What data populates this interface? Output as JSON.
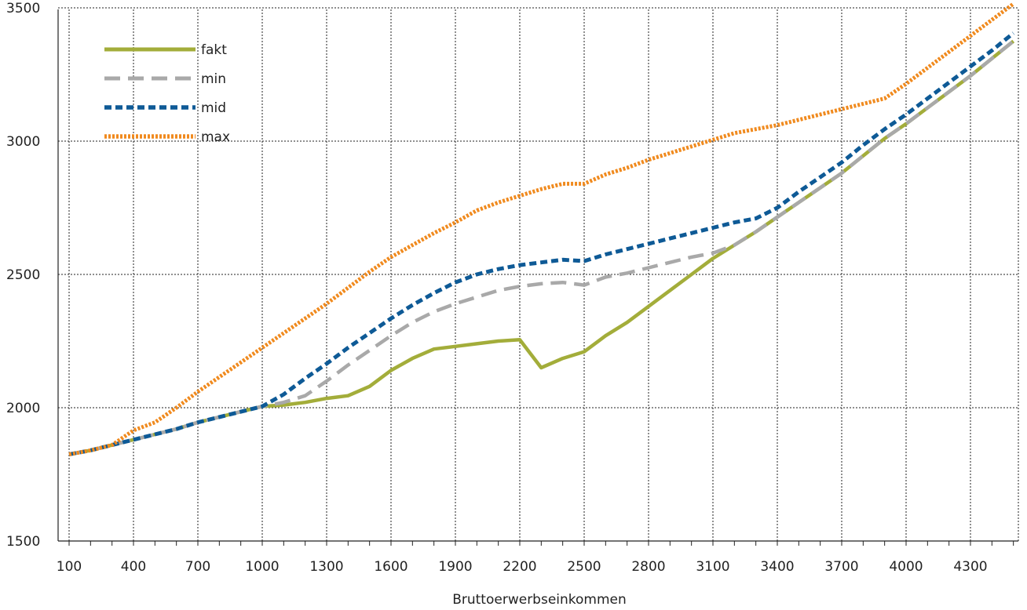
{
  "chart_data": {
    "type": "line",
    "title": "",
    "xlabel": "Bruttoerwerbseinkommen",
    "ylabel": "",
    "xlim": [
      100,
      4500
    ],
    "ylim": [
      1500,
      3500
    ],
    "x_ticks": [
      100,
      400,
      700,
      1000,
      1300,
      1600,
      1900,
      2200,
      2500,
      2800,
      3100,
      3400,
      3700,
      4000,
      4300
    ],
    "x_tick_labels": [
      "100",
      "400",
      "700",
      "1000",
      "1300",
      "1600",
      "1900",
      "2200",
      "2500",
      "2800",
      "3100",
      "3400",
      "3700",
      "4000",
      "4300"
    ],
    "y_ticks": [
      1500,
      2000,
      2500,
      3000,
      3500
    ],
    "y_tick_labels": [
      "1500",
      "2000",
      "2500",
      "3000",
      "3500"
    ],
    "grid": true,
    "legend_position": "top-left",
    "series": [
      {
        "name": "fakt",
        "color": "#a3ad3a",
        "dash": "solid",
        "points": [
          [
            100,
            1825
          ],
          [
            200,
            1840
          ],
          [
            300,
            1860
          ],
          [
            400,
            1880
          ],
          [
            500,
            1900
          ],
          [
            600,
            1920
          ],
          [
            700,
            1945
          ],
          [
            800,
            1965
          ],
          [
            900,
            1985
          ],
          [
            1000,
            2005
          ],
          [
            1100,
            2010
          ],
          [
            1200,
            2020
          ],
          [
            1300,
            2035
          ],
          [
            1400,
            2045
          ],
          [
            1500,
            2080
          ],
          [
            1600,
            2140
          ],
          [
            1700,
            2185
          ],
          [
            1800,
            2220
          ],
          [
            1900,
            2230
          ],
          [
            2000,
            2240
          ],
          [
            2100,
            2250
          ],
          [
            2200,
            2255
          ],
          [
            2300,
            2150
          ],
          [
            2400,
            2185
          ],
          [
            2500,
            2210
          ],
          [
            2600,
            2270
          ],
          [
            2700,
            2320
          ],
          [
            2800,
            2380
          ],
          [
            2900,
            2440
          ],
          [
            3000,
            2500
          ],
          [
            3100,
            2560
          ],
          [
            3200,
            2610
          ],
          [
            3300,
            2660
          ],
          [
            3400,
            2715
          ],
          [
            3500,
            2770
          ],
          [
            3600,
            2825
          ],
          [
            3700,
            2880
          ],
          [
            3800,
            2945
          ],
          [
            3900,
            3010
          ],
          [
            4000,
            3065
          ],
          [
            4100,
            3125
          ],
          [
            4200,
            3185
          ],
          [
            4300,
            3245
          ],
          [
            4400,
            3310
          ],
          [
            4500,
            3375
          ]
        ]
      },
      {
        "name": "min",
        "color": "#a9a9a9",
        "dash": "long-dash",
        "points": [
          [
            100,
            1825
          ],
          [
            200,
            1840
          ],
          [
            300,
            1860
          ],
          [
            400,
            1880
          ],
          [
            500,
            1900
          ],
          [
            600,
            1920
          ],
          [
            700,
            1945
          ],
          [
            800,
            1965
          ],
          [
            900,
            1985
          ],
          [
            1000,
            2005
          ],
          [
            1100,
            2020
          ],
          [
            1200,
            2045
          ],
          [
            1300,
            2100
          ],
          [
            1400,
            2160
          ],
          [
            1500,
            2215
          ],
          [
            1600,
            2270
          ],
          [
            1700,
            2320
          ],
          [
            1800,
            2360
          ],
          [
            1900,
            2390
          ],
          [
            2000,
            2415
          ],
          [
            2100,
            2440
          ],
          [
            2200,
            2455
          ],
          [
            2300,
            2465
          ],
          [
            2400,
            2470
          ],
          [
            2500,
            2460
          ],
          [
            2600,
            2490
          ],
          [
            2700,
            2505
          ],
          [
            2800,
            2525
          ],
          [
            2900,
            2545
          ],
          [
            3000,
            2565
          ],
          [
            3100,
            2580
          ],
          [
            3200,
            2610
          ],
          [
            3300,
            2660
          ],
          [
            3400,
            2715
          ],
          [
            3500,
            2770
          ],
          [
            3600,
            2825
          ],
          [
            3700,
            2880
          ],
          [
            3800,
            2945
          ],
          [
            3900,
            3010
          ],
          [
            4000,
            3065
          ],
          [
            4100,
            3125
          ],
          [
            4200,
            3185
          ],
          [
            4300,
            3245
          ],
          [
            4400,
            3310
          ],
          [
            4500,
            3375
          ]
        ]
      },
      {
        "name": "mid",
        "color": "#0e5a96",
        "dash": "short-dash",
        "points": [
          [
            100,
            1825
          ],
          [
            200,
            1840
          ],
          [
            300,
            1860
          ],
          [
            400,
            1880
          ],
          [
            500,
            1900
          ],
          [
            600,
            1920
          ],
          [
            700,
            1945
          ],
          [
            800,
            1965
          ],
          [
            900,
            1985
          ],
          [
            1000,
            2005
          ],
          [
            1100,
            2050
          ],
          [
            1200,
            2110
          ],
          [
            1300,
            2165
          ],
          [
            1400,
            2225
          ],
          [
            1500,
            2280
          ],
          [
            1600,
            2335
          ],
          [
            1700,
            2385
          ],
          [
            1800,
            2430
          ],
          [
            1900,
            2470
          ],
          [
            2000,
            2500
          ],
          [
            2100,
            2520
          ],
          [
            2200,
            2535
          ],
          [
            2300,
            2545
          ],
          [
            2400,
            2555
          ],
          [
            2500,
            2550
          ],
          [
            2600,
            2575
          ],
          [
            2700,
            2595
          ],
          [
            2800,
            2615
          ],
          [
            2900,
            2635
          ],
          [
            3000,
            2655
          ],
          [
            3100,
            2675
          ],
          [
            3200,
            2695
          ],
          [
            3300,
            2710
          ],
          [
            3400,
            2750
          ],
          [
            3500,
            2810
          ],
          [
            3600,
            2865
          ],
          [
            3700,
            2920
          ],
          [
            3800,
            2985
          ],
          [
            3900,
            3045
          ],
          [
            4000,
            3100
          ],
          [
            4100,
            3160
          ],
          [
            4200,
            3220
          ],
          [
            4300,
            3280
          ],
          [
            4400,
            3340
          ],
          [
            4500,
            3405
          ]
        ]
      },
      {
        "name": "max",
        "color": "#f08a1e",
        "dash": "dotted",
        "points": [
          [
            100,
            1825
          ],
          [
            200,
            1840
          ],
          [
            300,
            1860
          ],
          [
            400,
            1915
          ],
          [
            500,
            1945
          ],
          [
            600,
            2000
          ],
          [
            700,
            2060
          ],
          [
            800,
            2115
          ],
          [
            900,
            2170
          ],
          [
            1000,
            2225
          ],
          [
            1100,
            2280
          ],
          [
            1200,
            2335
          ],
          [
            1300,
            2390
          ],
          [
            1400,
            2450
          ],
          [
            1500,
            2510
          ],
          [
            1600,
            2565
          ],
          [
            1700,
            2610
          ],
          [
            1800,
            2655
          ],
          [
            1900,
            2695
          ],
          [
            2000,
            2740
          ],
          [
            2100,
            2770
          ],
          [
            2200,
            2795
          ],
          [
            2300,
            2820
          ],
          [
            2400,
            2840
          ],
          [
            2500,
            2840
          ],
          [
            2600,
            2875
          ],
          [
            2700,
            2900
          ],
          [
            2800,
            2930
          ],
          [
            2900,
            2955
          ],
          [
            3000,
            2980
          ],
          [
            3100,
            3005
          ],
          [
            3200,
            3030
          ],
          [
            3300,
            3045
          ],
          [
            3400,
            3060
          ],
          [
            3500,
            3080
          ],
          [
            3600,
            3100
          ],
          [
            3700,
            3120
          ],
          [
            3800,
            3140
          ],
          [
            3900,
            3160
          ],
          [
            4000,
            3215
          ],
          [
            4100,
            3275
          ],
          [
            4200,
            3335
          ],
          [
            4300,
            3395
          ],
          [
            4400,
            3455
          ],
          [
            4500,
            3515
          ]
        ]
      }
    ]
  }
}
